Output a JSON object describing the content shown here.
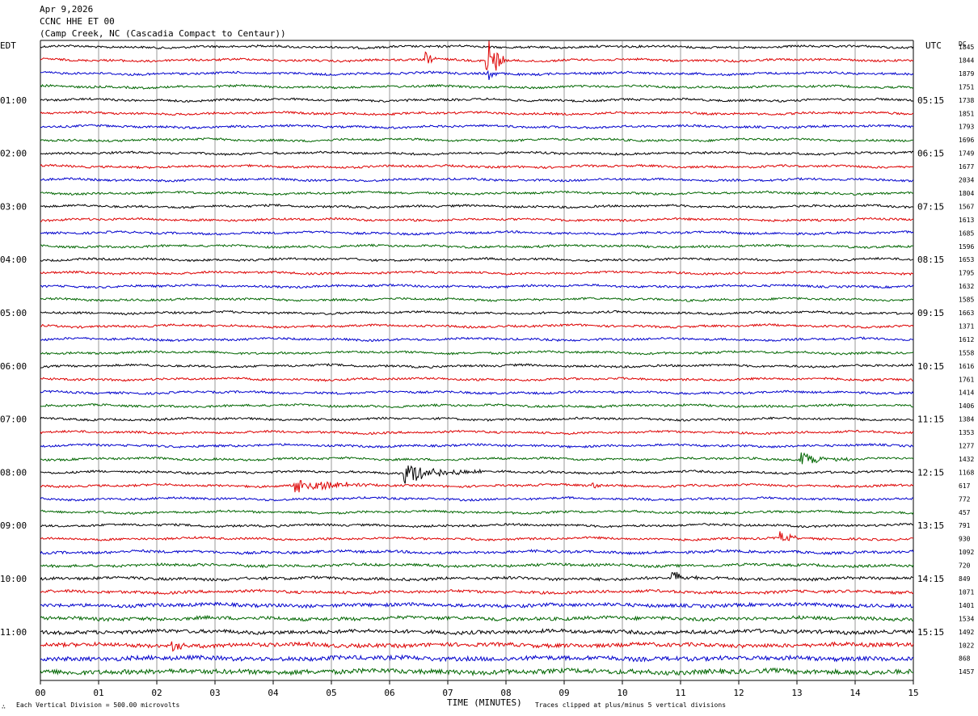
{
  "header": {
    "date": "Apr 9,2026",
    "station": "CCNC HHE ET 00",
    "location": "(Camp Creek, NC (Cascadia Compact to Centaur))"
  },
  "left_tz": "EDT",
  "right_tz": "UTC",
  "dc_heading": "DC",
  "footer": {
    "scale_note": "Each Vertical Division =  500.00 microvolts",
    "xlabel": "TIME (MINUTES)",
    "clip_note": "Traces clipped at plus/minus 5 vertical divisions"
  },
  "colors": {
    "traces": [
      "#000000",
      "#dd0000",
      "#0000cc",
      "#006600"
    ],
    "grid": "#808080",
    "frame": "#000000"
  },
  "chart_data": {
    "type": "line",
    "title": "CCNC HHE ET 00",
    "xlabel": "TIME (MINUTES)",
    "ylabel": "",
    "xlim": [
      0,
      15
    ],
    "x_ticks": [
      "00",
      "01",
      "02",
      "03",
      "04",
      "05",
      "06",
      "07",
      "08",
      "09",
      "10",
      "11",
      "12",
      "13",
      "14",
      "15"
    ],
    "trace_count": 48,
    "left_hour_labels": [
      {
        "row": 4,
        "label": "01:00"
      },
      {
        "row": 8,
        "label": "02:00"
      },
      {
        "row": 12,
        "label": "03:00"
      },
      {
        "row": 16,
        "label": "04:00"
      },
      {
        "row": 20,
        "label": "05:00"
      },
      {
        "row": 24,
        "label": "06:00"
      },
      {
        "row": 28,
        "label": "07:00"
      },
      {
        "row": 32,
        "label": "08:00"
      },
      {
        "row": 36,
        "label": "09:00"
      },
      {
        "row": 40,
        "label": "10:00"
      },
      {
        "row": 44,
        "label": "11:00"
      }
    ],
    "right_hour_labels": [
      {
        "row": 4,
        "label": "05:15"
      },
      {
        "row": 8,
        "label": "06:15"
      },
      {
        "row": 12,
        "label": "07:15"
      },
      {
        "row": 16,
        "label": "08:15"
      },
      {
        "row": 20,
        "label": "09:15"
      },
      {
        "row": 24,
        "label": "10:15"
      },
      {
        "row": 28,
        "label": "11:15"
      },
      {
        "row": 32,
        "label": "12:15"
      },
      {
        "row": 36,
        "label": "13:15"
      },
      {
        "row": 40,
        "label": "14:15"
      },
      {
        "row": 44,
        "label": "15:15"
      }
    ],
    "dc_offsets": [
      "1845",
      "1844",
      "1879",
      "1751",
      "1738",
      "1851",
      "1793",
      "1696",
      "1749",
      "1677",
      "2034",
      "1804",
      "1567",
      "1613",
      "1685",
      "1596",
      "1653",
      "1795",
      "1632",
      "1585",
      "1663",
      "1371",
      "1612",
      "1558",
      "1616",
      "1761",
      "1414",
      "1406",
      "1384",
      "1353",
      "1277",
      "1432",
      "1168",
      "617",
      "772",
      "457",
      "791",
      "930",
      "1092",
      "720",
      "849",
      "1071",
      "1401",
      "1534",
      "1492",
      "1022",
      "868",
      "1457"
    ],
    "noise_levels": [
      1,
      1,
      1,
      1,
      1,
      1,
      1,
      1,
      1,
      1,
      1,
      1,
      1,
      1,
      1,
      1,
      1,
      1,
      1,
      1,
      1,
      1,
      1,
      1,
      1,
      1,
      1,
      1,
      1,
      1,
      1,
      1,
      1,
      1,
      1,
      1,
      1,
      1,
      1.2,
      1.2,
      1.3,
      1.3,
      1.6,
      1.6,
      1.7,
      1.8,
      2,
      2.2
    ],
    "events": [
      {
        "row": 1,
        "minute": 7.7,
        "amplitude": 4.5,
        "duration_min": 0.3
      },
      {
        "row": 1,
        "minute": 6.65,
        "amplitude": 1.2,
        "duration_min": 0.15
      },
      {
        "row": 2,
        "minute": 7.7,
        "amplitude": 1.5,
        "duration_min": 0.2
      },
      {
        "row": 31,
        "minute": 13.1,
        "amplitude": 1.2,
        "duration_min": 0.8
      },
      {
        "row": 32,
        "minute": 6.3,
        "amplitude": 1.8,
        "duration_min": 1.3
      },
      {
        "row": 33,
        "minute": 4.4,
        "amplitude": 1.5,
        "duration_min": 1.2
      },
      {
        "row": 33,
        "minute": 9.5,
        "amplitude": 0.8,
        "duration_min": 0.2
      },
      {
        "row": 37,
        "minute": 12.75,
        "amplitude": 1.0,
        "duration_min": 0.3
      },
      {
        "row": 40,
        "minute": 10.9,
        "amplitude": 1.2,
        "duration_min": 0.4
      },
      {
        "row": 45,
        "minute": 2.3,
        "amplitude": 1.2,
        "duration_min": 0.3
      }
    ]
  }
}
